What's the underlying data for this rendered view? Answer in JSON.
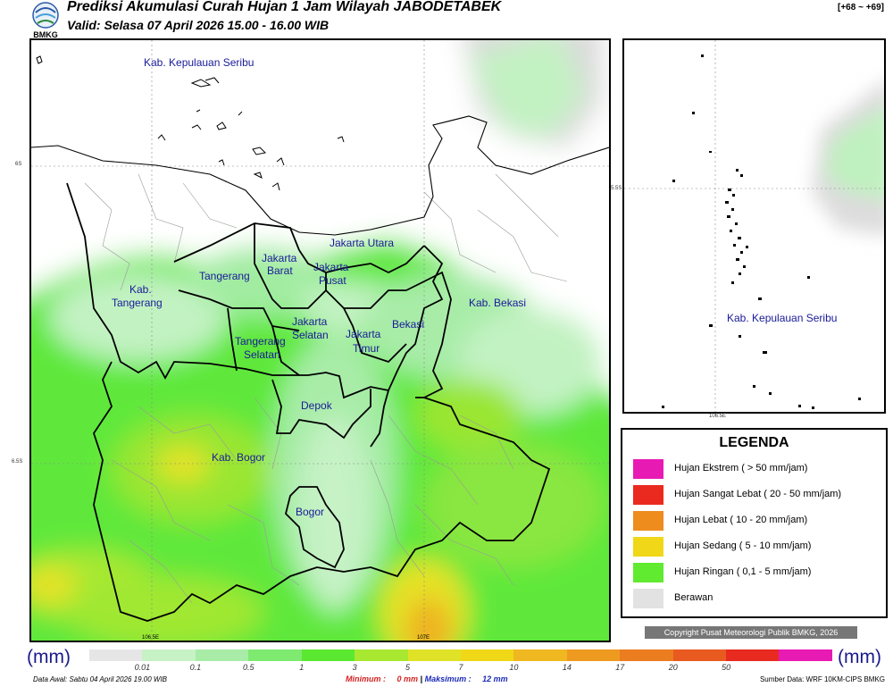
{
  "header": {
    "logo_text": "BMKG",
    "title": "Prediksi Akumulasi Curah Hujan 1 Jam Wilayah JABODETABEK",
    "subtitle": "Valid: Selasa 07 April 2026 15.00 - 16.00 WIB",
    "range": "[+68 ~ +69]"
  },
  "map": {
    "coords": {
      "lat_6s": "6S",
      "lat_6_5s": "6.5S",
      "lon_106_5e": "106.5E",
      "lon_107e": "107E",
      "inset_lat": "5.5S",
      "inset_lon": "106.5E"
    },
    "regions": [
      {
        "name": "kab-kepulauan-seribu",
        "lines": [
          "Kab. Kepulauan Seribu"
        ]
      },
      {
        "name": "jakarta-utara",
        "lines": [
          "Jakarta Utara"
        ]
      },
      {
        "name": "jakarta-barat",
        "lines": [
          "Jakarta",
          "Barat"
        ]
      },
      {
        "name": "jakarta-pusat",
        "lines": [
          "Jakarta",
          "Pusat"
        ]
      },
      {
        "name": "tangerang",
        "lines": [
          "Tangerang"
        ]
      },
      {
        "name": "kab-tangerang",
        "lines": [
          "Kab.",
          "Tangerang"
        ]
      },
      {
        "name": "jakarta-selatan",
        "lines": [
          "Jakarta",
          "Selatan"
        ]
      },
      {
        "name": "jakarta-timur",
        "lines": [
          "Jakarta",
          "Timur"
        ]
      },
      {
        "name": "bekasi",
        "lines": [
          "Bekasi"
        ]
      },
      {
        "name": "kab-bekasi",
        "lines": [
          "Kab. Bekasi"
        ]
      },
      {
        "name": "tangerang-selatan",
        "lines": [
          "Tangerang",
          "Selatan"
        ]
      },
      {
        "name": "depok",
        "lines": [
          "Depok"
        ]
      },
      {
        "name": "kab-bogor",
        "lines": [
          "Kab. Bogor"
        ]
      },
      {
        "name": "bogor",
        "lines": [
          "Bogor"
        ]
      }
    ],
    "inset_label": "Kab. Kepulauan Seribu"
  },
  "legend": {
    "title": "LEGENDA",
    "items": [
      {
        "label": "Hujan Ekstrem ( > 50 mm/jam)",
        "color": "#e81ab4"
      },
      {
        "label": "Hujan Sangat Lebat ( 20 - 50 mm/jam)",
        "color": "#ea2a1e"
      },
      {
        "label": "Hujan Lebat ( 10 - 20 mm/jam)",
        "color": "#ee8c1e"
      },
      {
        "label": "Hujan Sedang ( 5 - 10 mm/jam)",
        "color": "#f0d818"
      },
      {
        "label": "Hujan Ringan ( 0,1 - 5 mm/jam)",
        "color": "#60ea30"
      },
      {
        "label": "Berawan",
        "color": "#e2e2e2"
      }
    ]
  },
  "copyright": "Copyright Pusat Meteorologi Publik BMKG, 2026",
  "colorbar": {
    "unit_left": "(mm)",
    "unit_right": "(mm)",
    "colors": [
      "#e6e6e6",
      "#c6f2c6",
      "#a8eca8",
      "#7eea70",
      "#5ae830",
      "#a8e830",
      "#e0e228",
      "#f0d818",
      "#f0b820",
      "#ee9a20",
      "#ec7c20",
      "#e85a20",
      "#e82a20",
      "#e81ab4"
    ],
    "ticks": [
      "0.01",
      "0.1",
      "0.5",
      "1",
      "3",
      "5",
      "7",
      "10",
      "14",
      "17",
      "20",
      "50"
    ]
  },
  "footer": {
    "data_awal": "Data Awal: Sabtu 04 April 2026 19.00 WIB",
    "min_label": "Minimum :",
    "min_value": "0 mm",
    "max_label": "Maksimum :",
    "max_value": "12 mm",
    "source": "Sumber Data: WRF 10KM-CIPS BMKG"
  }
}
